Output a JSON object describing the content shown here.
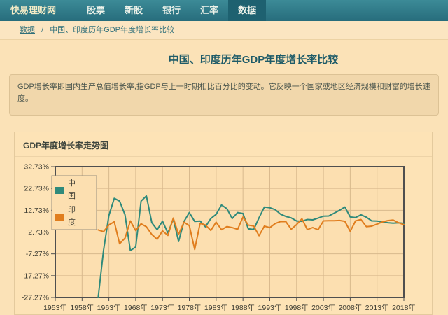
{
  "nav": {
    "brand": "快易理财网",
    "items": [
      {
        "label": "股票",
        "active": false
      },
      {
        "label": "新股",
        "active": false
      },
      {
        "label": "银行",
        "active": false
      },
      {
        "label": "汇率",
        "active": false
      },
      {
        "label": "数据",
        "active": true
      }
    ]
  },
  "breadcrumb": {
    "root": "数据",
    "separator": "/",
    "current": "中国、印度历年GDP年度增长率比较"
  },
  "page": {
    "title": "中国、印度历年GDP年度增长率比较",
    "description": "GDP增长率即国内生产总值增长率,指GDP与上一时期相比百分比的变动。它反映一个国家或地区经济规模和财富的增长速度。"
  },
  "chart_panel": {
    "header": "GDP年度增长率走势图"
  },
  "chart_data": {
    "type": "line",
    "title": "GDP年度增长率走势图",
    "grid": true,
    "legend_position": "top-left",
    "colors": {
      "plot_bg": "#fcdfb0",
      "grid": "#d8b98d",
      "border": "#4f4f4f",
      "legend_border": "#9a9180",
      "tick_text": "#3e3d33"
    },
    "x_axis": {
      "min": 1953,
      "max": 2018,
      "ticks": [
        1953,
        1958,
        1963,
        1968,
        1973,
        1978,
        1983,
        1988,
        1993,
        1998,
        2003,
        2008,
        2013,
        2018
      ],
      "labels": [
        "1953年",
        "1958年",
        "1963年",
        "1968年",
        "1973年",
        "1978年",
        "1983年",
        "1988年",
        "1993年",
        "1998年",
        "2003年",
        "2008年",
        "2013年",
        "2018年"
      ]
    },
    "y_axis": {
      "min": -27.27,
      "max": 32.73,
      "ticks": [
        32.73,
        22.73,
        12.73,
        2.73,
        -7.27,
        -17.27,
        -27.27
      ],
      "labels": [
        "32.73%",
        "22.73%",
        "12.73%",
        "2.73%",
        "-7.27%",
        "-17.27%",
        "-27.27%"
      ]
    },
    "x": [
      1961,
      1962,
      1963,
      1964,
      1965,
      1966,
      1967,
      1968,
      1969,
      1970,
      1971,
      1972,
      1973,
      1974,
      1975,
      1976,
      1977,
      1978,
      1979,
      1980,
      1981,
      1982,
      1983,
      1984,
      1985,
      1986,
      1987,
      1988,
      1989,
      1990,
      1991,
      1992,
      1993,
      1994,
      1995,
      1996,
      1997,
      1998,
      1999,
      2000,
      2001,
      2002,
      2003,
      2004,
      2005,
      2006,
      2007,
      2008,
      2009,
      2010,
      2011,
      2012,
      2013,
      2014,
      2015,
      2016,
      2017,
      2018
    ],
    "series": [
      {
        "key": "china",
        "name": "中国",
        "color": "#2f8a7b",
        "values": [
          -27.27,
          -5.58,
          10.3,
          18.18,
          16.95,
          10.65,
          -5.77,
          -4.1,
          16.94,
          19.3,
          7.06,
          3.81,
          7.76,
          2.31,
          8.72,
          -1.57,
          7.57,
          11.67,
          7.6,
          7.81,
          5.17,
          8.93,
          10.84,
          15.14,
          13.44,
          8.94,
          11.69,
          11.23,
          4.19,
          3.91,
          9.29,
          14.22,
          13.88,
          13.04,
          10.95,
          9.93,
          9.23,
          7.84,
          7.67,
          8.49,
          8.34,
          9.13,
          10.04,
          10.11,
          11.4,
          12.72,
          14.23,
          9.65,
          9.4,
          10.64,
          9.55,
          7.86,
          7.77,
          7.43,
          7.04,
          6.85,
          6.95,
          6.75
        ]
      },
      {
        "key": "india",
        "name": "印度",
        "color": "#e07d1d",
        "values": [
          3.72,
          2.93,
          5.99,
          7.45,
          -2.64,
          -0.06,
          7.83,
          3.39,
          6.54,
          5.16,
          1.64,
          -0.55,
          3.3,
          1.19,
          9.15,
          1.66,
          7.25,
          5.71,
          -5.24,
          6.74,
          6.01,
          3.48,
          7.29,
          3.82,
          5.25,
          4.78,
          3.97,
          9.63,
          5.95,
          5.53,
          1.06,
          5.48,
          4.75,
          6.66,
          7.57,
          7.55,
          4.05,
          6.18,
          8.85,
          3.84,
          4.82,
          3.8,
          7.86,
          7.92,
          7.92,
          8.06,
          7.66,
          3.09,
          7.86,
          8.5,
          5.24,
          5.46,
          6.39,
          7.41,
          8.0,
          8.26,
          7.04,
          6.12
        ]
      }
    ]
  }
}
